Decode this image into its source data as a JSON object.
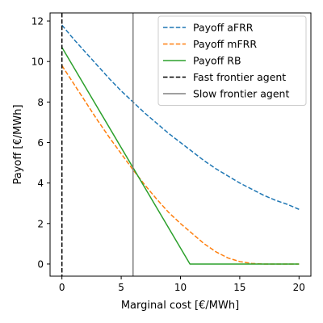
{
  "chart_data": {
    "type": "line",
    "title": "",
    "xlabel": "Marginal cost [€/MWh]",
    "ylabel": "Payoff [€/MWh]",
    "xlim": [
      -1,
      21
    ],
    "ylim": [
      -0.6,
      12.4
    ],
    "xticks": [
      0,
      5,
      10,
      15,
      20
    ],
    "yticks": [
      0,
      2,
      4,
      6,
      8,
      10,
      12
    ],
    "grid": false,
    "legend_position": "top-right",
    "series": [
      {
        "name": "Payoff aFRR",
        "color": "#1f77b4",
        "style": "dashed",
        "x": [
          0,
          1,
          2,
          3,
          4,
          5,
          6,
          7,
          8,
          9,
          10,
          11,
          12,
          13,
          14,
          15,
          16,
          17,
          18,
          19,
          20
        ],
        "y": [
          11.8,
          11.1,
          10.45,
          9.8,
          9.15,
          8.55,
          8.0,
          7.45,
          6.95,
          6.45,
          6.0,
          5.55,
          5.1,
          4.7,
          4.35,
          4.0,
          3.7,
          3.4,
          3.15,
          2.95,
          2.7
        ]
      },
      {
        "name": "Payoff mFRR",
        "color": "#ff7f0e",
        "style": "dashed",
        "x": [
          0,
          1,
          2,
          3,
          4,
          5,
          6,
          7,
          8,
          9,
          10,
          11,
          12,
          13,
          14,
          15,
          16,
          17,
          18,
          19,
          20
        ],
        "y": [
          9.8,
          8.9,
          8.0,
          7.1,
          6.25,
          5.45,
          4.65,
          3.9,
          3.2,
          2.55,
          2.0,
          1.5,
          1.0,
          0.6,
          0.3,
          0.12,
          0.03,
          0.0,
          0.0,
          0.0,
          0.0
        ]
      },
      {
        "name": "Payoff RB",
        "color": "#2ca02c",
        "style": "solid",
        "x": [
          0,
          10.8,
          11,
          20
        ],
        "y": [
          10.7,
          0,
          0,
          0
        ]
      },
      {
        "name": "Fast frontier agent",
        "color": "#000000",
        "style": "dashed",
        "vline": 0
      },
      {
        "name": "Slow frontier agent",
        "color": "#808080",
        "style": "solid",
        "vline": 6
      }
    ]
  }
}
